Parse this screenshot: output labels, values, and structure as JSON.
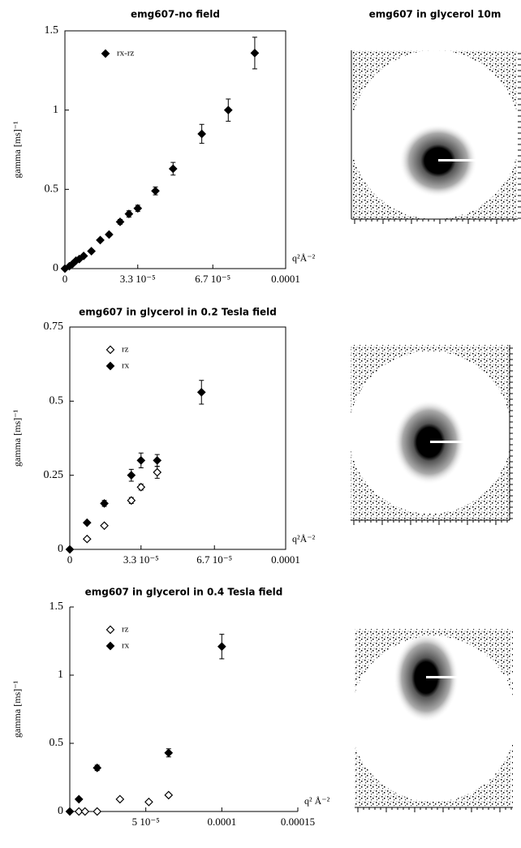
{
  "image_panel": {
    "title": "emg607 in glycerol 10m"
  },
  "chart_data": [
    {
      "type": "scatter",
      "title": "emg607-no  field",
      "y_label": "gamma [ms]⁻¹",
      "x_label": "q²Å⁻²",
      "frame": true,
      "legend": "upper left",
      "xlim": [
        0,
        0.0001
      ],
      "xticks": [
        0,
        {
          "value": 3.3e-05,
          "label": "3.3 10⁻⁵"
        },
        {
          "value": 6.7e-05,
          "label": "6.7 10⁻⁵"
        },
        0.0001
      ],
      "ylim": [
        0,
        1.5
      ],
      "yticks": [
        0,
        0.5,
        1,
        1.5
      ],
      "series": [
        {
          "name": "rx-rz",
          "color": "#000000",
          "filled": true,
          "x": [
            0,
            2e-06,
            3.5e-06,
            5e-06,
            6.5e-06,
            8.5e-06,
            1.2e-05,
            1.6e-05,
            2e-05,
            2.5e-05,
            2.9e-05,
            3.3e-05,
            4.1e-05,
            4.9e-05,
            6.2e-05,
            7.4e-05,
            8.6e-05
          ],
          "values": [
            0,
            0.015,
            0.03,
            0.05,
            0.06,
            0.08,
            0.11,
            0.18,
            0.215,
            0.295,
            0.345,
            0.38,
            0.49,
            0.63,
            0.85,
            1.0,
            1.36
          ],
          "errors": [
            0,
            0,
            0,
            0,
            0,
            0,
            0.01,
            0.01,
            0.01,
            0.015,
            0.02,
            0.02,
            0.025,
            0.04,
            0.06,
            0.07,
            0.1
          ]
        }
      ]
    },
    {
      "type": "scatter",
      "title": "emg607 in glycerol in 0.2 Tesla field",
      "y_label": "gamma [ms]⁻¹",
      "x_label": "q²Å⁻²",
      "frame": true,
      "legend": "upper left",
      "xlim": [
        0,
        0.0001
      ],
      "xticks": [
        0,
        {
          "value": 3.3e-05,
          "label": "3.3 10⁻⁵"
        },
        {
          "value": 6.7e-05,
          "label": "6.7 10⁻⁵"
        },
        0.0001
      ],
      "ylim": [
        0,
        0.75
      ],
      "yticks": [
        0,
        0.25,
        0.5,
        0.75
      ],
      "series": [
        {
          "name": "rz",
          "color": "#000000",
          "filled": false,
          "x": [
            8e-06,
            1.6e-05,
            2.85e-05,
            3.3e-05,
            4.05e-05
          ],
          "values": [
            0.035,
            0.08,
            0.165,
            0.21,
            0.26
          ],
          "errors": [
            0,
            0,
            0.01,
            0.01,
            0.02
          ]
        },
        {
          "name": "rx",
          "color": "#000000",
          "filled": true,
          "x": [
            0,
            8e-06,
            1.6e-05,
            2.85e-05,
            3.3e-05,
            4.05e-05,
            6.1e-05
          ],
          "values": [
            0,
            0.09,
            0.155,
            0.25,
            0.3,
            0.3,
            0.53
          ],
          "errors": [
            0,
            0,
            0.01,
            0.02,
            0.025,
            0.02,
            0.04
          ]
        }
      ]
    },
    {
      "type": "scatter",
      "title": "emg607 in glycerol in 0.4 Tesla field",
      "y_label": "gamma [ms]⁻¹",
      "x_label": "q² Å⁻²",
      "frame": false,
      "legend": "upper left",
      "xlim": [
        0,
        0.00015
      ],
      "xticks": [
        {
          "value": 5e-05,
          "label": "5 10⁻⁵"
        },
        0.0001,
        0.00015
      ],
      "ylim": [
        0,
        1.5
      ],
      "yticks": [
        0,
        0.5,
        1,
        1.5
      ],
      "series": [
        {
          "name": "rz",
          "color": "#000000",
          "filled": false,
          "x": [
            6e-06,
            1e-05,
            1.8e-05,
            3.3e-05,
            5.2e-05,
            6.5e-05
          ],
          "values": [
            0,
            0,
            0,
            0.09,
            0.07,
            0.12
          ]
        },
        {
          "name": "rx",
          "color": "#000000",
          "filled": true,
          "x": [
            0,
            6e-06,
            1.8e-05,
            6.5e-05,
            0.0001
          ],
          "values": [
            0,
            0.09,
            0.32,
            0.43,
            1.21
          ],
          "errors": [
            0,
            0,
            0.02,
            0.03,
            0.09
          ]
        }
      ]
    }
  ]
}
